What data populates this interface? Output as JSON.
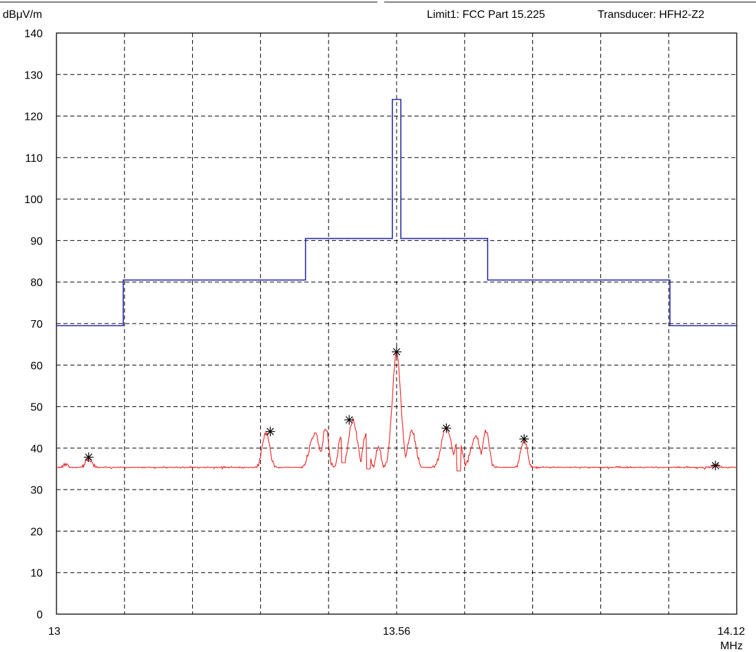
{
  "header": {
    "limit_text": "Limit1: FCC Part 15.225",
    "transducer_text": "Transducer: HFH2-Z2"
  },
  "chart_data": {
    "type": "line",
    "ylabel": "dBμV/m",
    "xlabel": "MHz",
    "xlim": [
      13,
      14.12
    ],
    "ylim": [
      0,
      140
    ],
    "grid": true,
    "x_tick_labels": [
      {
        "value": 13,
        "label": "13"
      },
      {
        "value": 13.56,
        "label": "13.56"
      },
      {
        "value": 14.12,
        "label": "14.12"
      }
    ],
    "y_ticks": [
      0,
      10,
      20,
      30,
      40,
      50,
      60,
      70,
      80,
      90,
      100,
      110,
      120,
      130,
      140
    ],
    "colors": {
      "limit": "#2a2aa8",
      "trace": "#f02020",
      "grid": "#000000",
      "marker": "#000000"
    },
    "limit_line": {
      "x": [
        13,
        13.11,
        13.11,
        13.41,
        13.41,
        13.553,
        13.553,
        13.567,
        13.567,
        13.71,
        13.71,
        14.01,
        14.01,
        14.12
      ],
      "y": [
        69.5,
        69.5,
        80.5,
        80.5,
        90.5,
        90.5,
        124,
        124,
        90.5,
        90.5,
        80.5,
        80.5,
        69.5,
        69.5
      ]
    },
    "trace_shape": {
      "baseline": 34.8,
      "peaks": [
        {
          "x": 13.053,
          "y": 37.5,
          "w": 0.009
        },
        {
          "x": 13.015,
          "y": 36.2,
          "w": 0.005
        },
        {
          "x": 13.345,
          "y": 43.8,
          "w": 0.009
        },
        {
          "x": 13.425,
          "y": 43.5,
          "w": 0.012
        },
        {
          "x": 13.443,
          "y": 45.0,
          "w": 0.007
        },
        {
          "x": 13.468,
          "y": 42.5,
          "w": 0.006
        },
        {
          "x": 13.488,
          "y": 46.8,
          "w": 0.01
        },
        {
          "x": 13.51,
          "y": 44.0,
          "w": 0.007
        },
        {
          "x": 13.53,
          "y": 40.5,
          "w": 0.006
        },
        {
          "x": 13.56,
          "y": 63.0,
          "w": 0.01
        },
        {
          "x": 13.585,
          "y": 44.0,
          "w": 0.01
        },
        {
          "x": 13.642,
          "y": 44.8,
          "w": 0.012
        },
        {
          "x": 13.662,
          "y": 43.0,
          "w": 0.008
        },
        {
          "x": 13.69,
          "y": 43.0,
          "w": 0.011
        },
        {
          "x": 13.707,
          "y": 44.0,
          "w": 0.008
        },
        {
          "x": 13.77,
          "y": 42.0,
          "w": 0.008
        },
        {
          "x": 14.085,
          "y": 36.0,
          "w": 0.008
        }
      ],
      "dips": [
        {
          "x": 13.473,
          "y": 36.5
        },
        {
          "x": 13.514,
          "y": 35.0
        },
        {
          "x": 13.662,
          "y": 34.5
        }
      ]
    },
    "markers": [
      {
        "x": 13.053,
        "y": 37.8
      },
      {
        "x": 13.352,
        "y": 44.0
      },
      {
        "x": 13.482,
        "y": 46.8
      },
      {
        "x": 13.56,
        "y": 63.2
      },
      {
        "x": 13.642,
        "y": 44.8
      },
      {
        "x": 13.77,
        "y": 42.2
      },
      {
        "x": 14.085,
        "y": 35.8
      }
    ]
  }
}
